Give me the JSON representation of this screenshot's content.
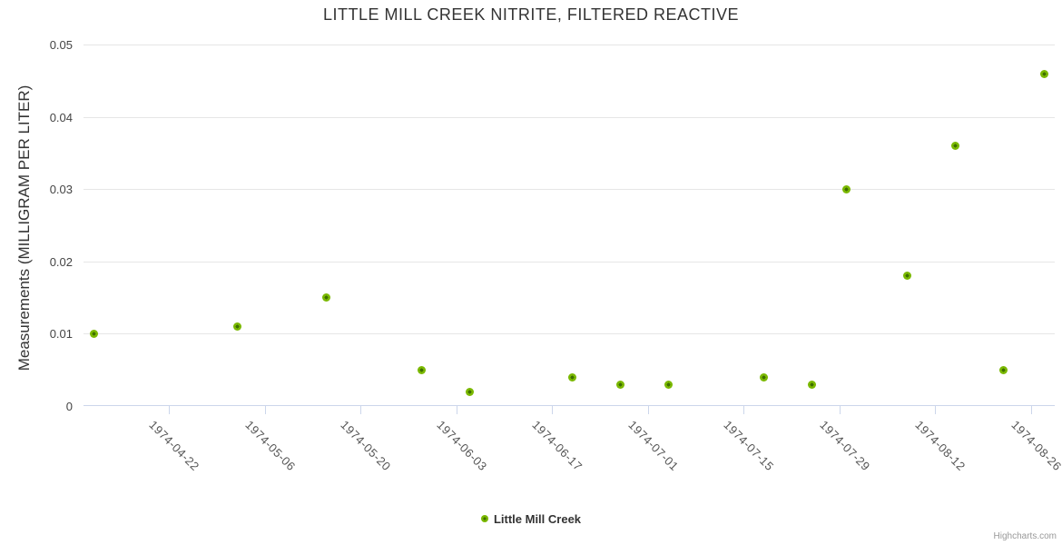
{
  "chart_data": {
    "type": "scatter",
    "title": "LITTLE MILL CREEK NITRITE, FILTERED REACTIVE",
    "xlabel": "",
    "ylabel": "Measurements (MILLIGRAM PER LITER)",
    "ylim": [
      0,
      0.05
    ],
    "ytick_values": [
      0,
      0.01,
      0.02,
      0.03,
      0.04,
      0.05
    ],
    "ytick_labels": [
      "0",
      "0.01",
      "0.02",
      "0.03",
      "0.04",
      "0.05"
    ],
    "grid": true,
    "xaxis": {
      "type": "datetime",
      "min": "1974-04-09T12:00:00Z",
      "max": "1974-08-29T12:00:00Z",
      "tick_labels": [
        "1974-04-22",
        "1974-05-06",
        "1974-05-20",
        "1974-06-03",
        "1974-06-17",
        "1974-07-01",
        "1974-07-15",
        "1974-07-29",
        "1974-08-12",
        "1974-08-26"
      ],
      "label_rotation_deg": 45
    },
    "legend": {
      "position": "bottom-center",
      "label": "Little Mill Creek"
    },
    "series": [
      {
        "name": "Little Mill Creek",
        "points": [
          {
            "date": "1974-04-11",
            "value": 0.01
          },
          {
            "date": "1974-05-02",
            "value": 0.011
          },
          {
            "date": "1974-05-15",
            "value": 0.015
          },
          {
            "date": "1974-05-29",
            "value": 0.005
          },
          {
            "date": "1974-06-05",
            "value": 0.002
          },
          {
            "date": "1974-06-20",
            "value": 0.004
          },
          {
            "date": "1974-06-27",
            "value": 0.003
          },
          {
            "date": "1974-07-04",
            "value": 0.003
          },
          {
            "date": "1974-07-18",
            "value": 0.004
          },
          {
            "date": "1974-07-25",
            "value": 0.003
          },
          {
            "date": "1974-07-30",
            "value": 0.03
          },
          {
            "date": "1974-08-08",
            "value": 0.018
          },
          {
            "date": "1974-08-15",
            "value": 0.036
          },
          {
            "date": "1974-08-22",
            "value": 0.005
          },
          {
            "date": "1974-08-28",
            "value": 0.046
          }
        ]
      }
    ],
    "colors": {
      "title": "#333333",
      "grid": "#e6e6e6",
      "axis_line": "#ccd6eb",
      "point_outer": "#7AB800",
      "point_core": "#3F7000",
      "credit": "#999999"
    },
    "credit_label": "Highcharts.com"
  }
}
